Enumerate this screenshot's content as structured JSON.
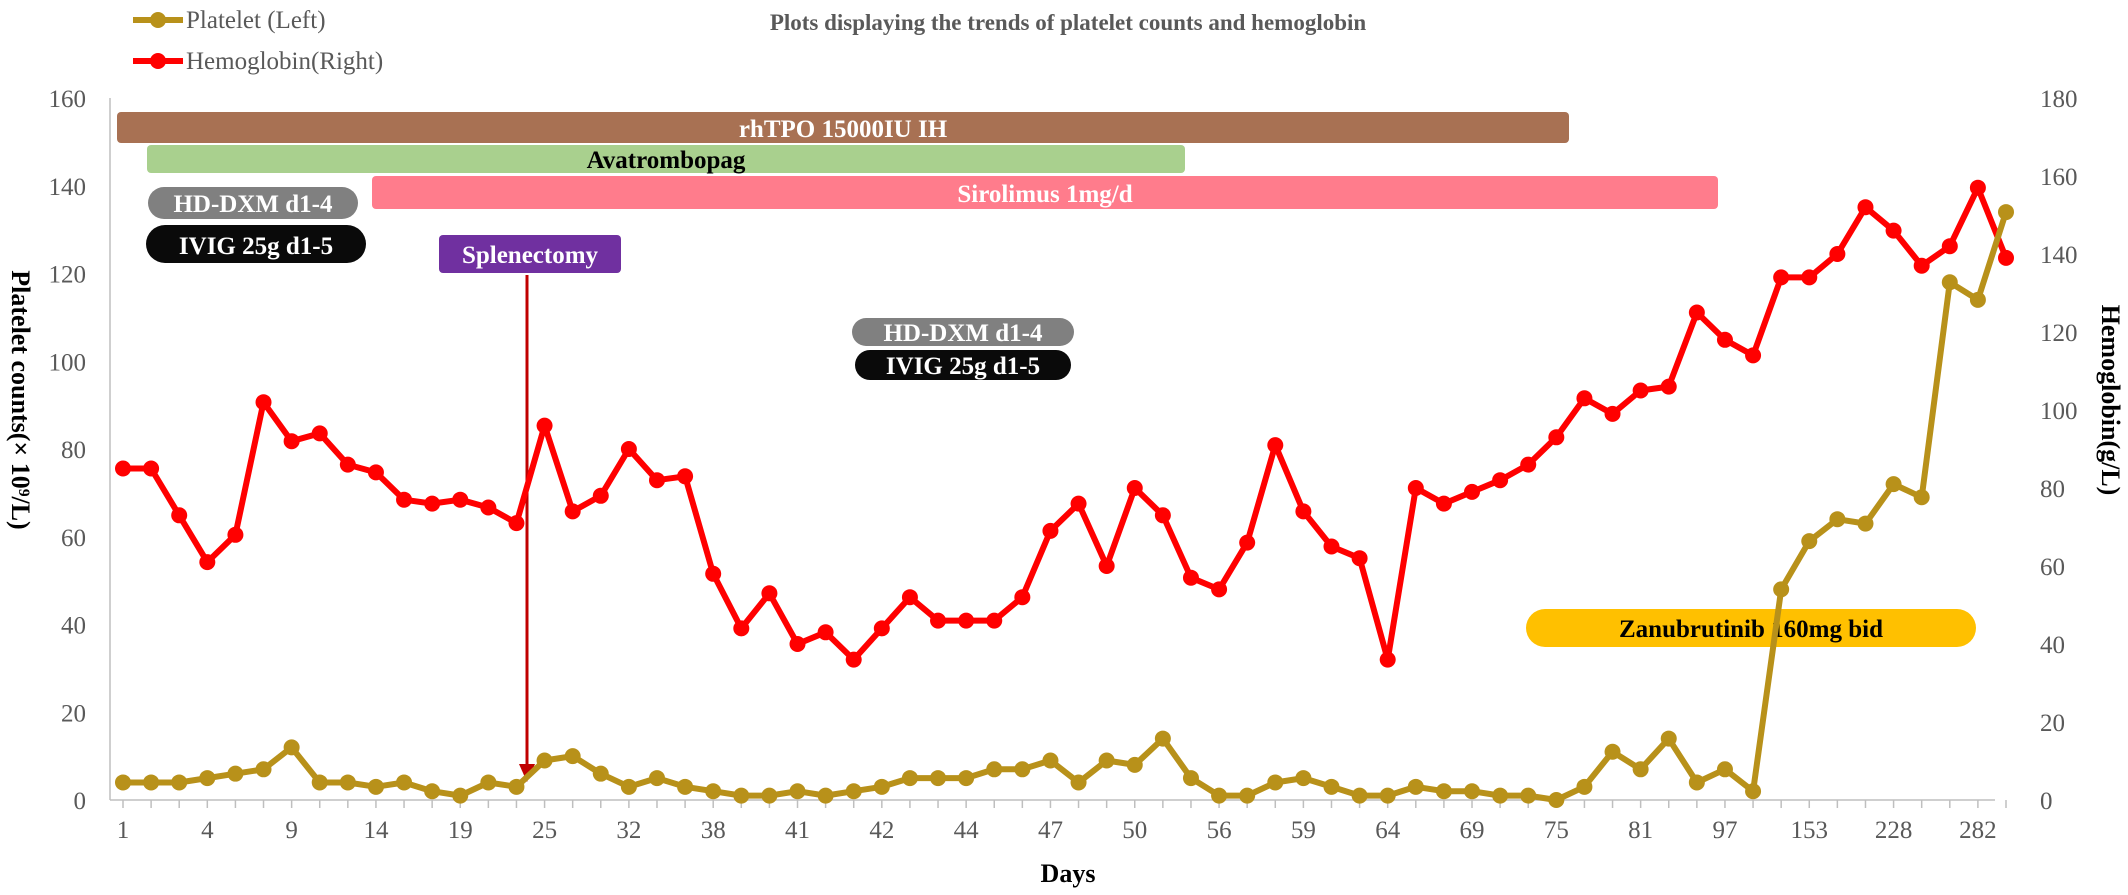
{
  "chart_data": {
    "type": "line",
    "title": "Plots displaying the trends of platelet counts and hemoglobin",
    "xlabel": "Days",
    "ylabel_left": "Platelet counts(× 10⁹/L)",
    "ylabel_right": "Hemoglobin(g/L)",
    "ylim_left": [
      0,
      160
    ],
    "ylim_right": [
      0,
      180
    ],
    "yticks_left": [
      "0",
      "20",
      "40",
      "60",
      "80",
      "100",
      "120",
      "140",
      "160"
    ],
    "yticks_right": [
      "0",
      "20",
      "40",
      "60",
      "80",
      "100",
      "120",
      "140",
      "160",
      "180"
    ],
    "x_tick_labels": [
      "1",
      "4",
      "9",
      "14",
      "19",
      "25",
      "32",
      "38",
      "41",
      "42",
      "44",
      "47",
      "50",
      "56",
      "59",
      "64",
      "69",
      "75",
      "81",
      "97",
      "153",
      "228",
      "282"
    ],
    "legend": [
      "Platelet (Left)",
      "Hemoglobin(Right)"
    ],
    "series": [
      {
        "name": "Platelet (Left)",
        "axis": "left",
        "color": "#B8911A",
        "values": [
          4,
          4,
          4,
          5,
          6,
          7,
          12,
          4,
          4,
          3,
          4,
          2,
          1,
          4,
          3,
          9,
          10,
          6,
          3,
          5,
          3,
          2,
          1,
          1,
          2,
          1,
          2,
          3,
          5,
          5,
          5,
          7,
          7,
          9,
          4,
          9,
          8,
          14,
          5,
          1,
          1,
          4,
          5,
          3,
          1,
          1,
          3,
          2,
          2,
          1,
          1,
          0,
          3,
          11,
          7,
          14,
          4,
          7,
          2,
          48,
          59,
          64,
          63,
          72,
          69,
          118,
          114,
          134
        ]
      },
      {
        "name": "Hemoglobin(Right)",
        "axis": "right",
        "color": "#FF0000",
        "values": [
          85,
          85,
          73,
          61,
          68,
          102,
          92,
          94,
          86,
          84,
          77,
          76,
          77,
          75,
          71,
          96,
          74,
          78,
          90,
          82,
          83,
          58,
          44,
          53,
          40,
          43,
          36,
          44,
          52,
          46,
          46,
          46,
          52,
          69,
          76,
          60,
          80,
          73,
          57,
          54,
          66,
          91,
          74,
          65,
          62,
          36,
          80,
          76,
          79,
          82,
          86,
          93,
          103,
          99,
          105,
          106,
          125,
          118,
          114,
          134,
          134,
          140,
          152,
          146,
          137,
          142,
          157,
          139
        ]
      }
    ],
    "annotations": {
      "bars": [
        {
          "label": "rhTPO  15000IU  IH",
          "fill": "#A87153",
          "text_color": "#FFFFFF"
        },
        {
          "label": "Avatrombopag",
          "fill": "#A9D08E",
          "text_color": "#000000"
        },
        {
          "label": "Sirolimus   1mg/d",
          "fill": "#FF7C8C",
          "text_color": "#FFFFFF"
        },
        {
          "label": "HD-DXM d1-4",
          "fill": "#808080",
          "text_color": "#FFFFFF"
        },
        {
          "label": "IVIG 25g  d1-5",
          "fill": "#0A0A0A",
          "text_color": "#FFFFFF"
        },
        {
          "label": "Splenectomy",
          "fill": "#7030A0",
          "text_color": "#FFFFFF"
        },
        {
          "label": "HD-DXM  d1-4",
          "fill": "#808080",
          "text_color": "#FFFFFF"
        },
        {
          "label": "IVIG  25g  d1-5",
          "fill": "#0A0A0A",
          "text_color": "#FFFFFF"
        },
        {
          "label": "Zanubrutinib 160mg bid",
          "fill": "#FFC000",
          "text_color": "#000000"
        }
      ],
      "arrow_color": "#C00000"
    }
  }
}
